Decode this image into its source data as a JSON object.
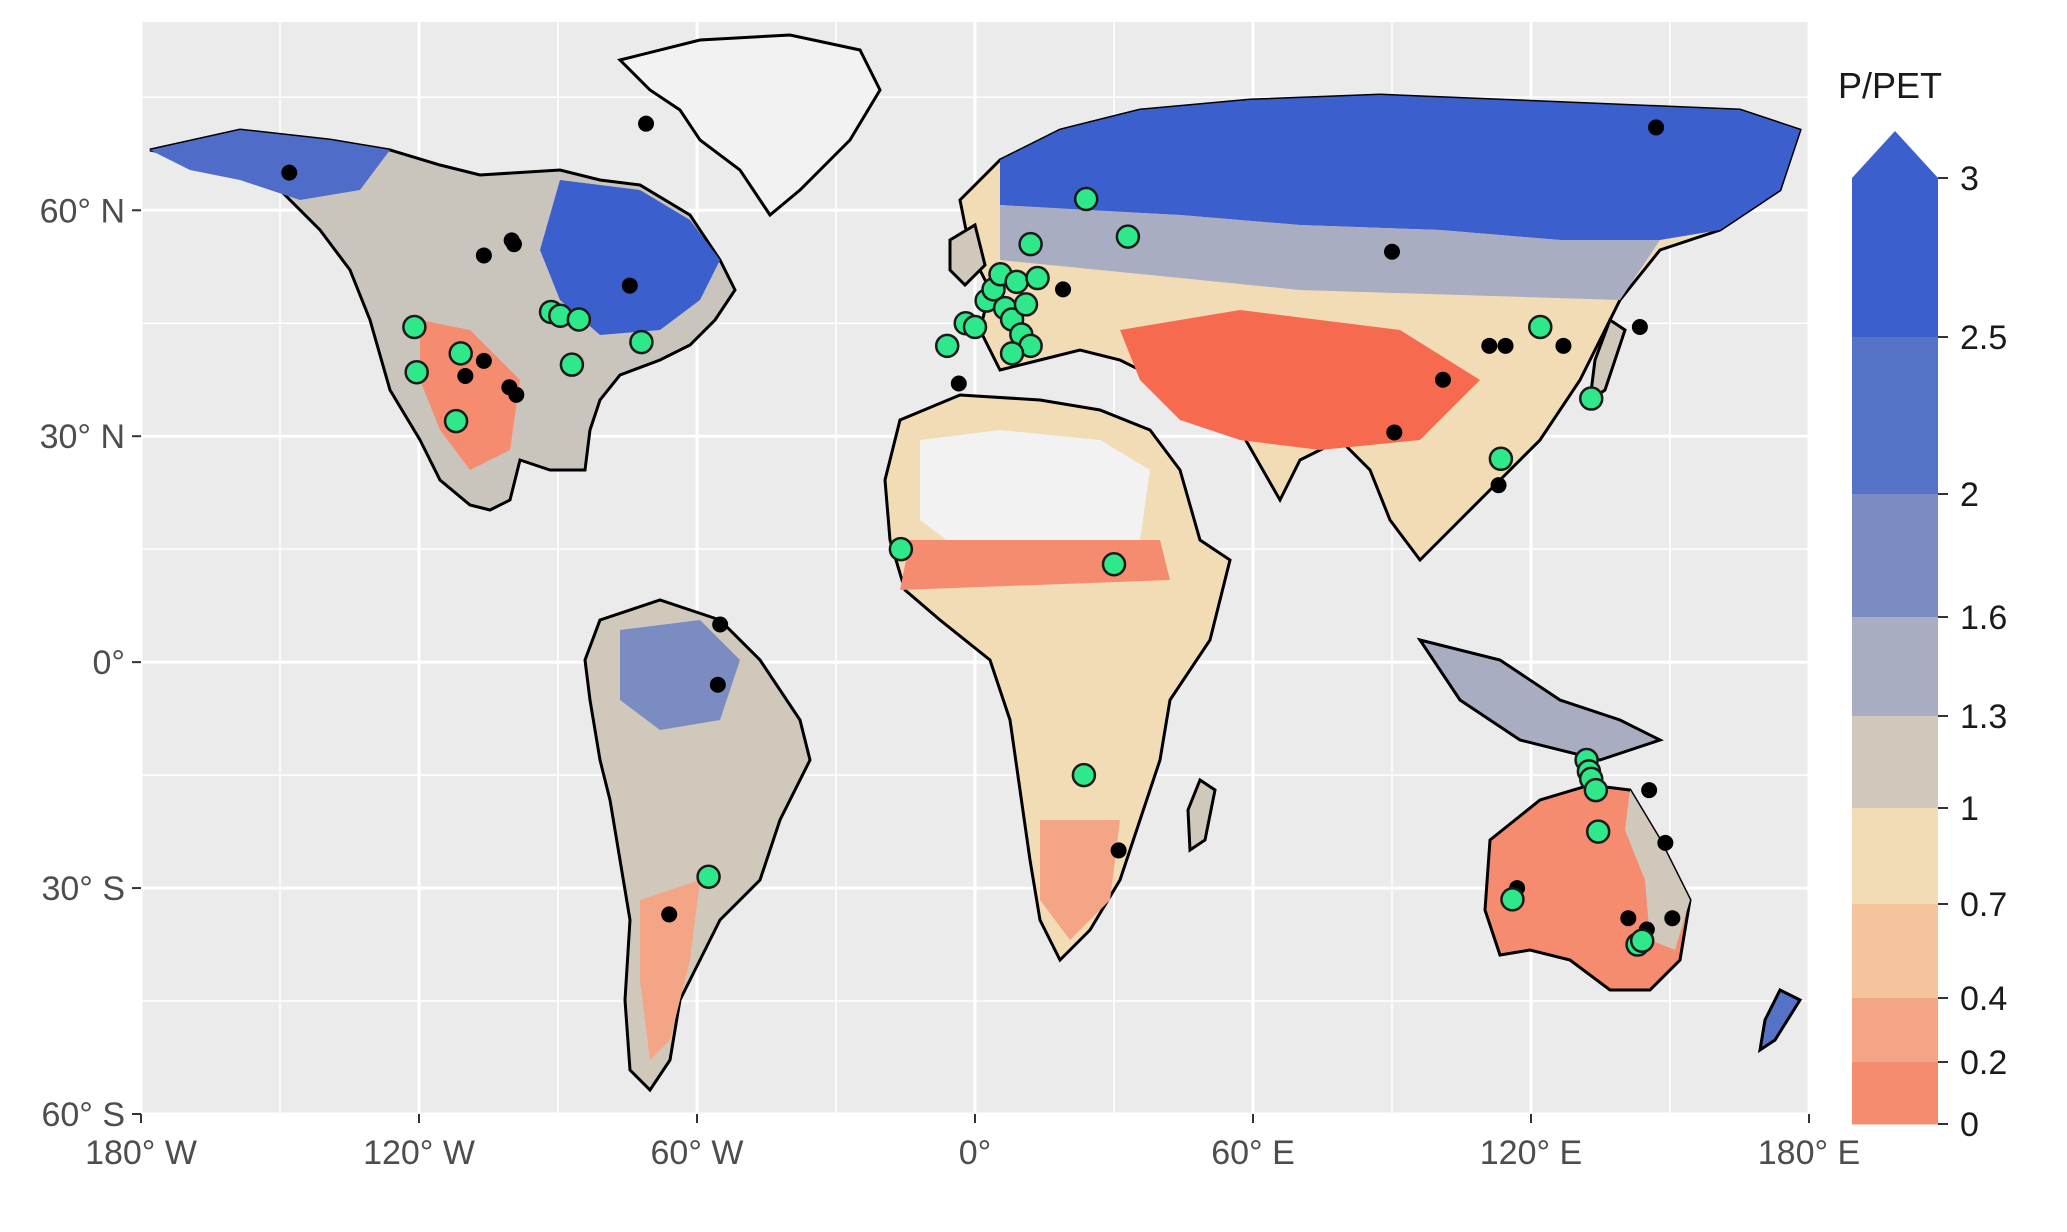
{
  "colors": {
    "panel": "#ebebeb",
    "grid": "#ffffff",
    "coast": "#000000",
    "station_green": "#2ee88a",
    "station_black": "#000000",
    "desert": "#f2f2f2",
    "greenland": "#f2f2f2"
  },
  "axes": {
    "x_ticks": [
      "180° W",
      "120° W",
      "60° W",
      "0°",
      "60° E",
      "120° E",
      "180° E"
    ],
    "y_ticks": [
      "60° N",
      "30° N",
      "0°",
      "30° S",
      "60° S"
    ]
  },
  "legend": {
    "title": "P/PET",
    "labels": [
      "3",
      "2.5",
      "2",
      "1.6",
      "1.3",
      "1",
      "0.7",
      "0.4",
      "0.2",
      "0"
    ],
    "colors": [
      "#3c5fce",
      "#5573c6",
      "#7b8cc2",
      "#a9adc1",
      "#d0c8ba",
      "#f2dcb6",
      "#f4c49d",
      "#f4a585",
      "#f58c70",
      "#f66a50"
    ]
  },
  "map": {
    "lon_range": [
      -180,
      180
    ],
    "lat_range": [
      -60,
      85
    ],
    "green_stations": [
      [
        -121,
        44.5
      ],
      [
        -120.5,
        38.5
      ],
      [
        -111,
        41
      ],
      [
        -112,
        32
      ],
      [
        -91.5,
        46.5
      ],
      [
        -89.5,
        46
      ],
      [
        -85.5,
        45.5
      ],
      [
        -87,
        39.5
      ],
      [
        -72,
        42.5
      ],
      [
        -2,
        45
      ],
      [
        -6,
        42
      ],
      [
        0,
        44.5
      ],
      [
        2.5,
        48
      ],
      [
        4,
        49.5
      ],
      [
        5.5,
        51.5
      ],
      [
        6.5,
        47
      ],
      [
        8,
        45.5
      ],
      [
        9,
        50.5
      ],
      [
        10,
        43.5
      ],
      [
        11,
        47.5
      ],
      [
        12,
        42
      ],
      [
        13.5,
        51
      ],
      [
        12,
        55.5
      ],
      [
        8,
        41
      ],
      [
        24,
        61.5
      ],
      [
        33,
        56.5
      ],
      [
        -16,
        15
      ],
      [
        30,
        13
      ],
      [
        23.5,
        -15
      ],
      [
        -57.5,
        -28.5
      ],
      [
        122,
        44.5
      ],
      [
        113.5,
        27
      ],
      [
        133,
        35
      ],
      [
        132,
        -13
      ],
      [
        132.5,
        -14.5
      ],
      [
        133,
        -15.5
      ],
      [
        134,
        -17
      ],
      [
        134.5,
        -22.5
      ],
      [
        116,
        -31.5
      ],
      [
        143,
        -37.5
      ],
      [
        144,
        -37
      ]
    ],
    "black_stations": [
      [
        -148,
        65
      ],
      [
        -106,
        54
      ],
      [
        -100,
        56
      ],
      [
        -99.5,
        55.5
      ],
      [
        -74.5,
        50
      ],
      [
        -110,
        38
      ],
      [
        -106,
        40
      ],
      [
        -100.5,
        36.5
      ],
      [
        -99,
        35.5
      ],
      [
        -55,
        5
      ],
      [
        -55.5,
        -3
      ],
      [
        -66,
        -33.5
      ],
      [
        19,
        49.5
      ],
      [
        -3.5,
        37
      ],
      [
        31,
        -25
      ],
      [
        -71,
        71.5
      ],
      [
        90,
        54.5
      ],
      [
        90.5,
        30.5
      ],
      [
        101,
        37.5
      ],
      [
        111,
        42
      ],
      [
        114.5,
        42
      ],
      [
        127,
        42
      ],
      [
        113,
        23.5
      ],
      [
        143.5,
        44.5
      ],
      [
        147,
        71
      ],
      [
        145.5,
        -17
      ],
      [
        149,
        -24
      ],
      [
        117,
        -30
      ],
      [
        141,
        -34
      ],
      [
        145,
        -35.5
      ],
      [
        150.5,
        -34
      ]
    ]
  }
}
